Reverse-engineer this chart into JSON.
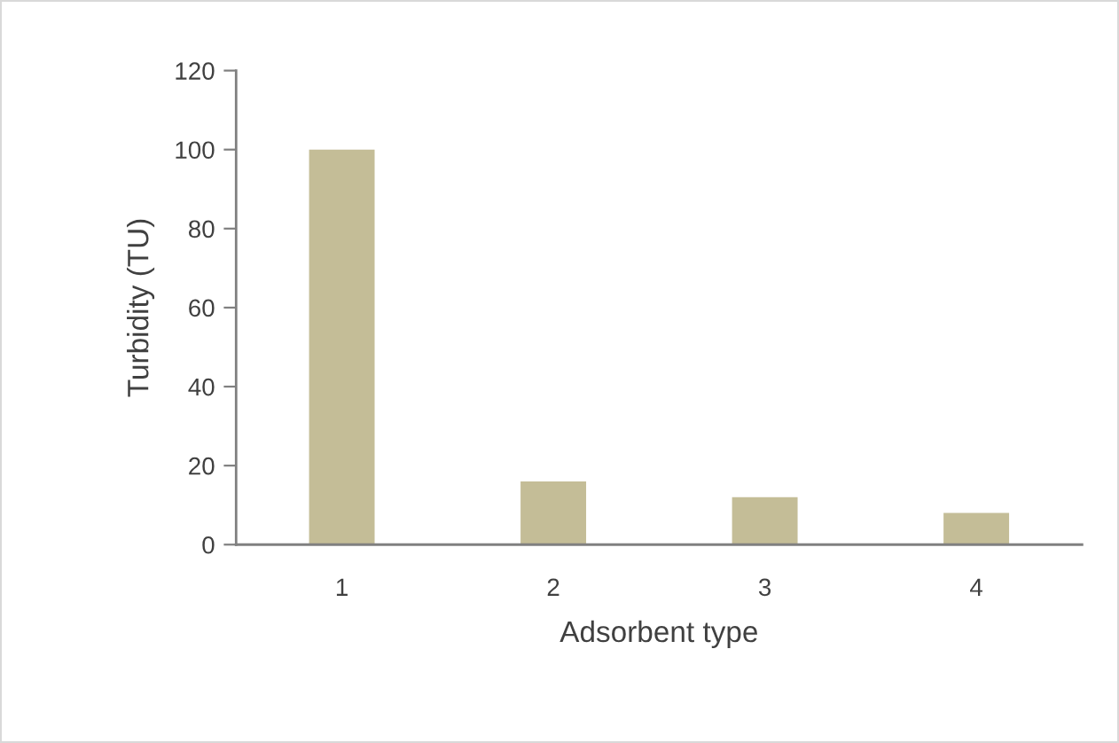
{
  "chart_data": {
    "type": "bar",
    "xlabel": "Adsorbent type",
    "ylabel": "Turbidity (TU)",
    "categories": [
      "1",
      "2",
      "3",
      "4"
    ],
    "values": [
      100,
      16,
      12,
      8
    ],
    "color": "#c4bd97",
    "ylim": [
      0,
      120
    ],
    "yticks": [
      0,
      20,
      40,
      60,
      80,
      100,
      120
    ],
    "grid": false,
    "legend": false
  }
}
